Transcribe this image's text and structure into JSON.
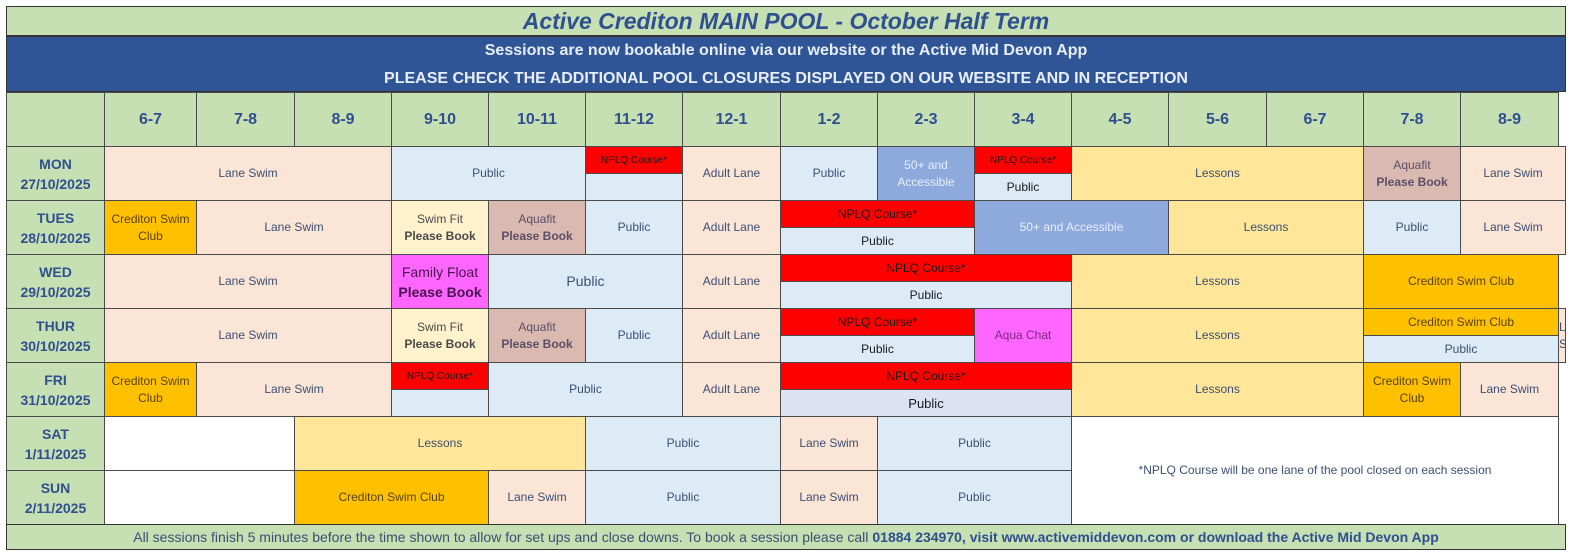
{
  "title": "Active Crediton MAIN POOL - October Half Term",
  "banner": {
    "line1": "Sessions are now bookable online via our website or the Active Mid Devon App",
    "line2": "PLEASE CHECK THE ADDITIONAL POOL CLOSURES DISPLAYED ON OUR WEBSITE AND IN RECEPTION"
  },
  "times": [
    "6-7",
    "7-8",
    "8-9",
    "9-10",
    "10-11",
    "11-12",
    "12-1",
    "1-2",
    "2-3",
    "3-4",
    "4-5",
    "5-6",
    "6-7",
    "7-8",
    "8-9"
  ],
  "days": {
    "mon": {
      "day": "MON",
      "date": "27/10/2025"
    },
    "tue": {
      "day": "TUES",
      "date": "28/10/2025"
    },
    "wed": {
      "day": "WED",
      "date": "29/10/2025"
    },
    "thu": {
      "day": "THUR",
      "date": "30/10/2025"
    },
    "fri": {
      "day": "FRI",
      "date": "31/10/2025"
    },
    "sat": {
      "day": "SAT",
      "date": "1/11/2025"
    },
    "sun": {
      "day": "SUN",
      "date": "2/11/2025"
    }
  },
  "labels": {
    "lane_swim": "Lane Swim",
    "public": "Public",
    "nplq_star": "NPLQ Course*",
    "adult_lane": "Adult Lane",
    "fifty_two_line": "50+ and Accessible",
    "fifty": "50+ and Accessible",
    "lessons": "Lessons",
    "aquafit": "Aquafit",
    "please_book": "Please Book",
    "crediton_club": "Crediton Swim Club",
    "swim_fit": "Swim Fit",
    "family_float": "Family Float",
    "aqua_chat": "Aqua Chat"
  },
  "note": "*NPLQ Course will be one lane of the pool closed on each session",
  "footer": {
    "text": "All sessions finish 5 minutes before the time shown to allow for set ups and close downs. To book a session please call",
    "contact": "01884 234970, visit www.activemiddevon.com or download the Active Mid Devon App"
  }
}
